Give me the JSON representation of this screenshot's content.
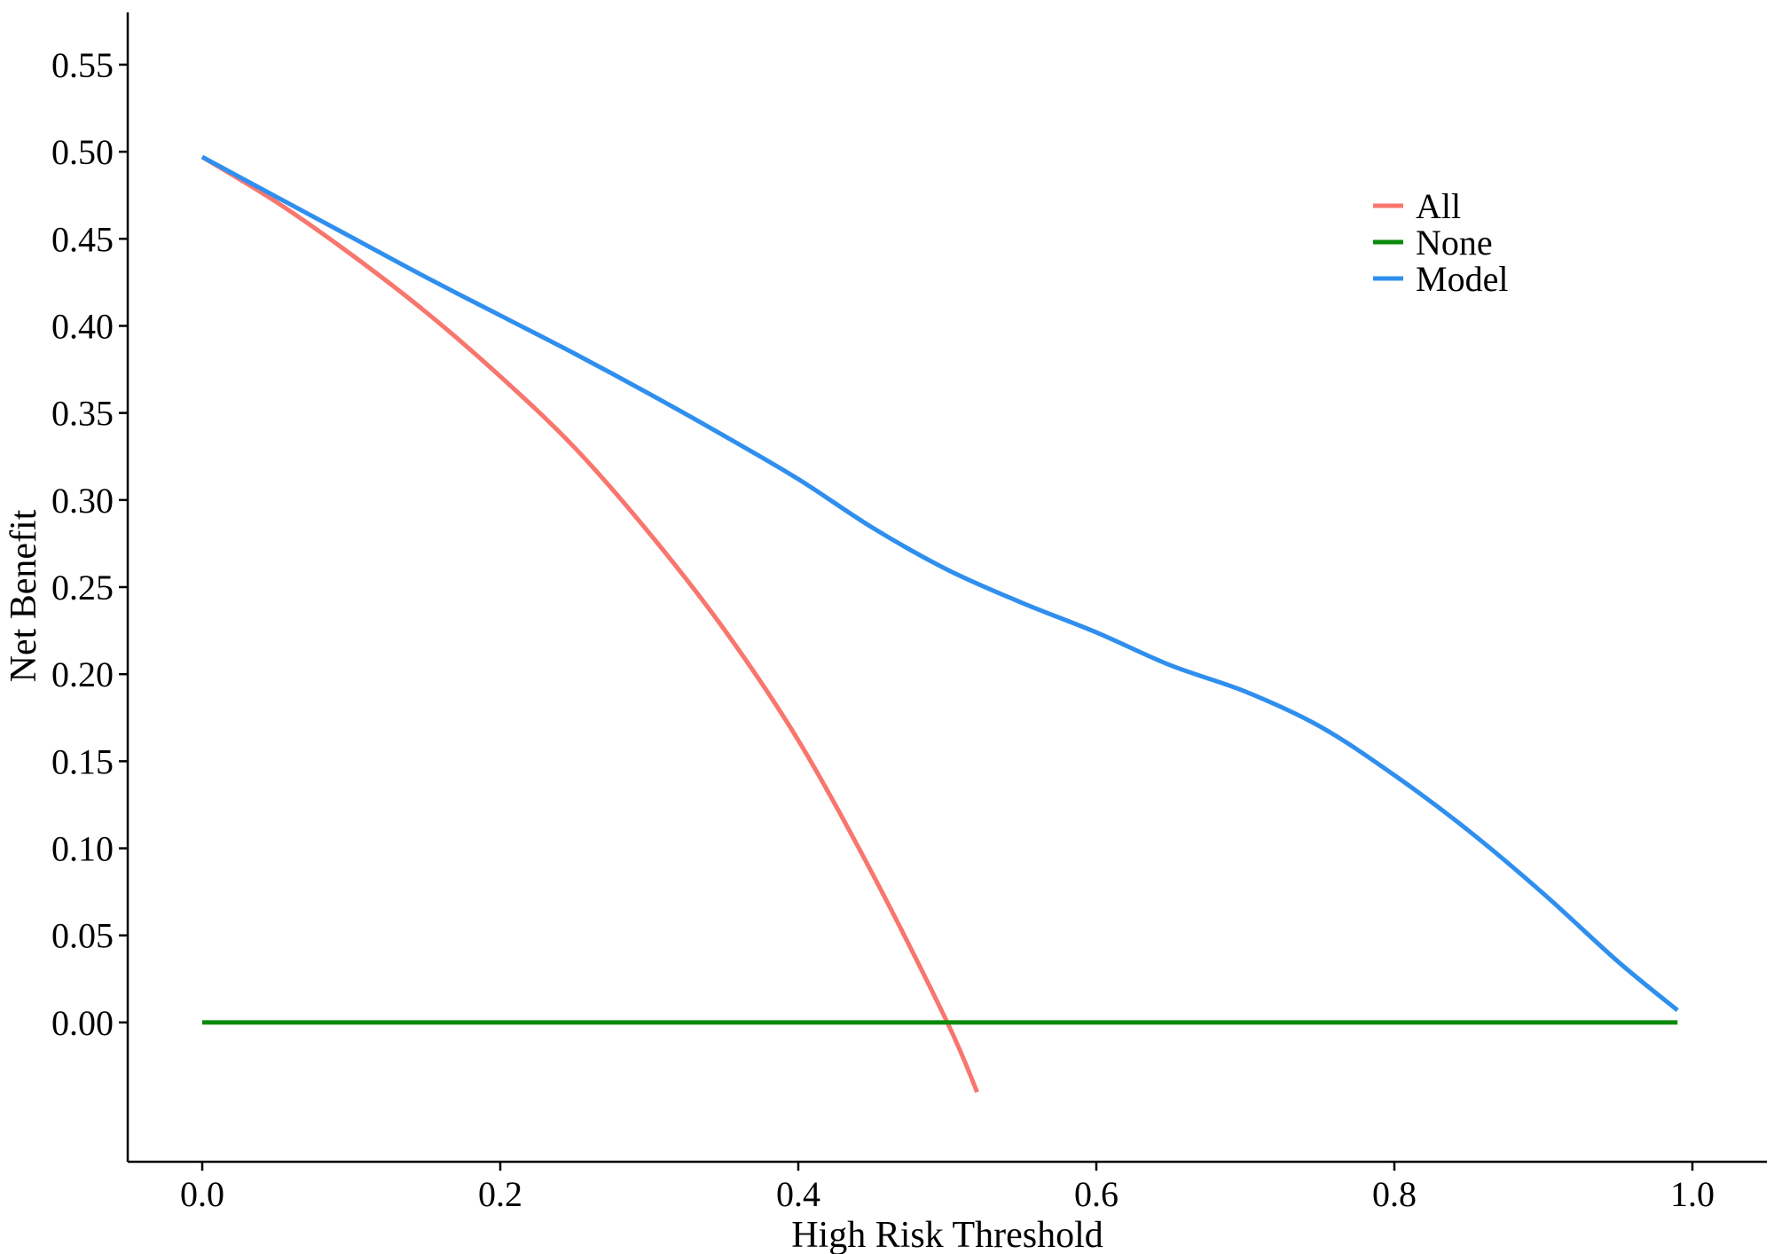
{
  "chart_data": {
    "type": "line",
    "title": "",
    "xlabel": "High Risk Threshold",
    "ylabel": "Net Benefit",
    "xlim": [
      -0.05,
      1.05
    ],
    "ylim": [
      -0.08,
      0.58
    ],
    "x_ticks": [
      {
        "value": 0.0,
        "label": "0.0"
      },
      {
        "value": 0.2,
        "label": "0.2"
      },
      {
        "value": 0.4,
        "label": "0.4"
      },
      {
        "value": 0.6,
        "label": "0.6"
      },
      {
        "value": 0.8,
        "label": "0.8"
      },
      {
        "value": 1.0,
        "label": "1.0"
      }
    ],
    "y_ticks": [
      {
        "value": 0.0,
        "label": "0.00"
      },
      {
        "value": 0.05,
        "label": "0.05"
      },
      {
        "value": 0.1,
        "label": "0.10"
      },
      {
        "value": 0.15,
        "label": "0.15"
      },
      {
        "value": 0.2,
        "label": "0.20"
      },
      {
        "value": 0.25,
        "label": "0.25"
      },
      {
        "value": 0.3,
        "label": "0.30"
      },
      {
        "value": 0.35,
        "label": "0.35"
      },
      {
        "value": 0.4,
        "label": "0.40"
      },
      {
        "value": 0.45,
        "label": "0.45"
      },
      {
        "value": 0.5,
        "label": "0.50"
      },
      {
        "value": 0.55,
        "label": "0.55"
      }
    ],
    "grid": false,
    "legend_position": "top-right",
    "series": [
      {
        "name": "All",
        "color": "#F8766D",
        "x": [
          0.0,
          0.05,
          0.1,
          0.15,
          0.2,
          0.25,
          0.3,
          0.35,
          0.4,
          0.45,
          0.5,
          0.52
        ],
        "y": [
          0.497,
          0.471,
          0.441,
          0.408,
          0.371,
          0.33,
          0.281,
          0.226,
          0.162,
          0.085,
          0.0,
          -0.04
        ]
      },
      {
        "name": "None",
        "color": "#0A8A0A",
        "x": [
          0.0,
          0.99
        ],
        "y": [
          0.0,
          0.0
        ]
      },
      {
        "name": "Model",
        "color": "#2F8FEF",
        "x": [
          0.0,
          0.05,
          0.1,
          0.15,
          0.2,
          0.25,
          0.3,
          0.35,
          0.4,
          0.45,
          0.5,
          0.55,
          0.6,
          0.65,
          0.7,
          0.75,
          0.8,
          0.85,
          0.9,
          0.95,
          0.99
        ],
        "y": [
          0.497,
          0.474,
          0.451,
          0.428,
          0.406,
          0.384,
          0.361,
          0.337,
          0.312,
          0.284,
          0.26,
          0.241,
          0.224,
          0.205,
          0.19,
          0.17,
          0.142,
          0.11,
          0.074,
          0.035,
          0.007
        ]
      }
    ]
  }
}
